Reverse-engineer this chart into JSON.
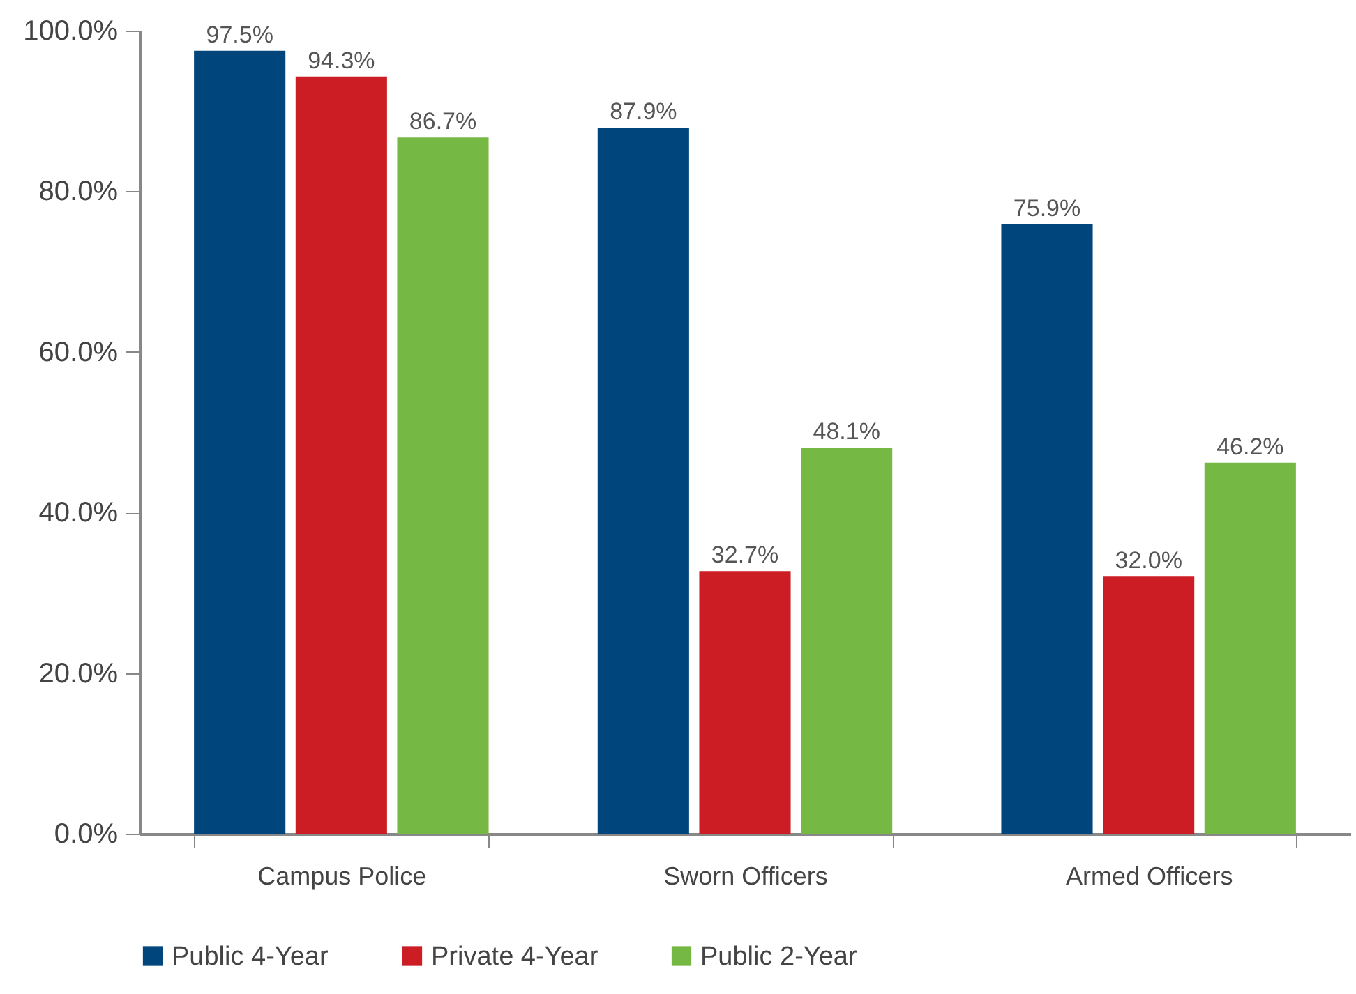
{
  "chart_data": {
    "type": "bar",
    "categories": [
      "Campus Police",
      "Sworn Officers",
      "Armed Officers"
    ],
    "series": [
      {
        "name": "Public 4-Year",
        "color": "#00457c",
        "values": [
          97.5,
          87.9,
          75.9
        ],
        "value_labels": [
          "97.5%",
          "87.9%",
          "75.9%"
        ]
      },
      {
        "name": "Private 4-Year",
        "color": "#cc1c24",
        "values": [
          94.3,
          32.7,
          32.0
        ],
        "value_labels": [
          "94.3%",
          "32.7%",
          "32.0%"
        ]
      },
      {
        "name": "Public 2-Year",
        "color": "#76b844",
        "values": [
          86.7,
          48.1,
          46.2
        ],
        "value_labels": [
          "86.7%",
          "48.1%",
          "46.2%"
        ]
      }
    ],
    "ylim": [
      0,
      100
    ],
    "yticks": [
      {
        "value": 0,
        "label": "0.0%"
      },
      {
        "value": 20,
        "label": "20.0%"
      },
      {
        "value": 40,
        "label": "40.0%"
      },
      {
        "value": 60,
        "label": "60.0%"
      },
      {
        "value": 80,
        "label": "80.0%"
      },
      {
        "value": 100,
        "label": "100.0%"
      }
    ],
    "grid": false,
    "legend": "bottom"
  }
}
